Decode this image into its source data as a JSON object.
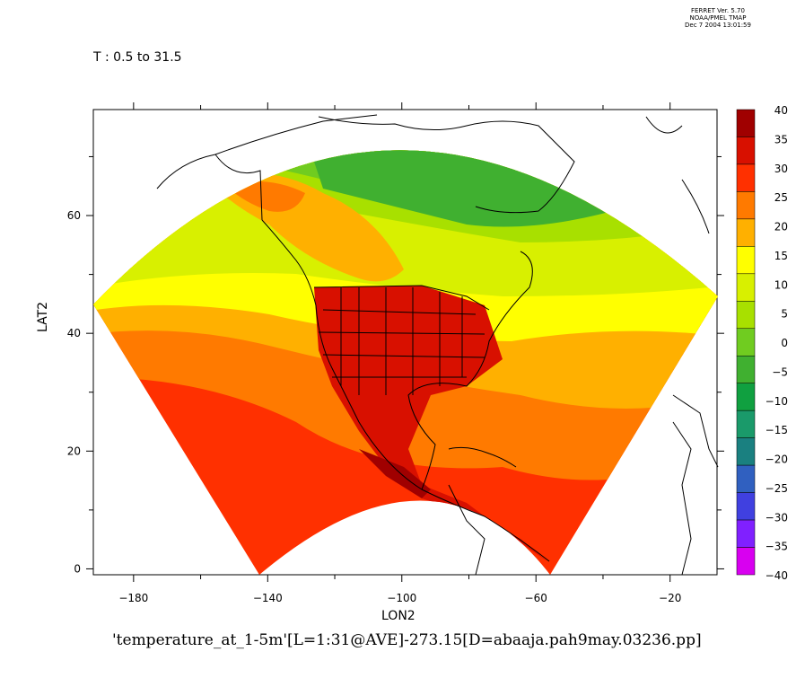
{
  "header": {
    "ferret_lines": [
      "FERRET Ver. 5.70",
      "NOAA/PMEL TMAP",
      "Dec  7 2004 13:01:59"
    ],
    "range_label": "T : 0.5 to 31.5"
  },
  "axes": {
    "xlabel": "LON2",
    "ylabel": "LAT2",
    "x_ticks": [
      -180,
      -140,
      -100,
      -60,
      -20
    ],
    "y_ticks": [
      0,
      20,
      40,
      60
    ],
    "xlim": [
      -192,
      -6
    ],
    "ylim": [
      -1,
      78
    ]
  },
  "colorbar": {
    "levels": [
      40,
      35,
      30,
      25,
      20,
      15,
      10,
      5,
      0,
      -5,
      -10,
      -15,
      -20,
      -25,
      -30,
      -35,
      -40
    ],
    "colors": [
      "#a00000",
      "#d81000",
      "#ff3000",
      "#ff7a00",
      "#ffb000",
      "#ffff00",
      "#d8f000",
      "#a8e000",
      "#70cc20",
      "#40b030",
      "#10a040",
      "#1a9a6a",
      "#1a8080",
      "#3060c0",
      "#4040e0",
      "#8020ff",
      "#d800f0"
    ]
  },
  "footer": {
    "caption": "'temperature_at_1-5m'[L=1:31@AVE]-273.15[D=abaaja.pah9may.03236.pp]"
  }
}
